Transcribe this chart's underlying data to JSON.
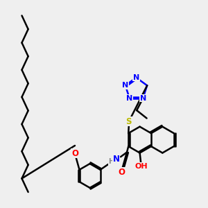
{
  "background_color": "#efefef",
  "bond_color": "#000000",
  "bond_width": 1.8,
  "atom_colors": {
    "N": "#0000ff",
    "O": "#ff0000",
    "S": "#bbbb00",
    "H": "#888888",
    "C": "#000000"
  },
  "figsize": [
    3.0,
    3.0
  ],
  "dpi": 100
}
